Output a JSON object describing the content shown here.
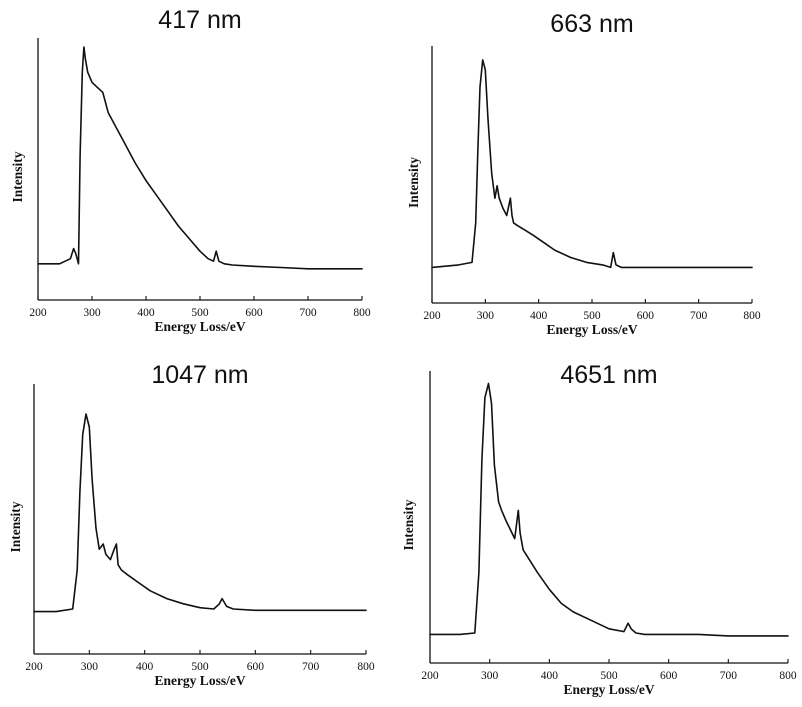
{
  "chart_data": [
    {
      "type": "line",
      "title": "417 nm",
      "xlabel": "Energy Loss/eV",
      "ylabel": "Intensity",
      "xlim": [
        200,
        800
      ],
      "ylim": [
        0,
        1
      ],
      "xticks": [
        200,
        300,
        400,
        500,
        600,
        700,
        800
      ],
      "yticks": [],
      "grid": false,
      "legend": "none",
      "series": [
        {
          "x": [
            200,
            240,
            260,
            266,
            270,
            275,
            278,
            282,
            285,
            288,
            292,
            300,
            310,
            320,
            330,
            345,
            360,
            380,
            400,
            420,
            440,
            460,
            480,
            500,
            515,
            525,
            530,
            535,
            545,
            560,
            600,
            650,
            700,
            760,
            800
          ],
          "y": [
            0.12,
            0.12,
            0.14,
            0.18,
            0.16,
            0.12,
            0.55,
            0.88,
            0.98,
            0.93,
            0.88,
            0.84,
            0.82,
            0.8,
            0.72,
            0.66,
            0.6,
            0.52,
            0.45,
            0.39,
            0.33,
            0.27,
            0.22,
            0.17,
            0.14,
            0.13,
            0.17,
            0.13,
            0.12,
            0.115,
            0.11,
            0.105,
            0.1,
            0.1,
            0.1
          ]
        }
      ]
    },
    {
      "type": "line",
      "title": "663 nm",
      "xlabel": "Energy Loss/eV",
      "ylabel": "Intensity",
      "xlim": [
        200,
        800
      ],
      "ylim": [
        0,
        1
      ],
      "xticks": [
        200,
        300,
        400,
        500,
        600,
        700,
        800
      ],
      "yticks": [],
      "grid": false,
      "legend": "none",
      "series": [
        {
          "x": [
            200,
            250,
            275,
            282,
            286,
            290,
            295,
            300,
            305,
            312,
            318,
            322,
            326,
            333,
            340,
            347,
            350,
            353,
            360,
            375,
            390,
            410,
            430,
            460,
            490,
            520,
            535,
            540,
            545,
            555,
            600,
            650,
            700,
            750,
            800
          ],
          "y": [
            0.12,
            0.13,
            0.14,
            0.3,
            0.6,
            0.85,
            0.96,
            0.92,
            0.72,
            0.5,
            0.4,
            0.45,
            0.4,
            0.36,
            0.33,
            0.4,
            0.33,
            0.3,
            0.29,
            0.27,
            0.25,
            0.22,
            0.19,
            0.16,
            0.14,
            0.13,
            0.12,
            0.18,
            0.13,
            0.12,
            0.12,
            0.12,
            0.12,
            0.12,
            0.12
          ]
        }
      ]
    },
    {
      "type": "line",
      "title": "1047 nm",
      "xlabel": "Energy Loss/eV",
      "ylabel": "Intensity",
      "xlim": [
        200,
        800
      ],
      "ylim": [
        0,
        1
      ],
      "xticks": [
        200,
        300,
        400,
        500,
        600,
        700,
        800
      ],
      "yticks": [],
      "grid": false,
      "legend": "none",
      "series": [
        {
          "x": [
            200,
            240,
            270,
            278,
            283,
            288,
            294,
            300,
            305,
            312,
            318,
            325,
            330,
            338,
            345,
            349,
            352,
            358,
            370,
            390,
            410,
            440,
            470,
            500,
            525,
            535,
            540,
            548,
            560,
            600,
            650,
            700,
            760,
            800
          ],
          "y": [
            0.14,
            0.14,
            0.15,
            0.3,
            0.6,
            0.82,
            0.9,
            0.85,
            0.65,
            0.46,
            0.38,
            0.4,
            0.36,
            0.34,
            0.38,
            0.4,
            0.32,
            0.3,
            0.28,
            0.25,
            0.22,
            0.19,
            0.17,
            0.155,
            0.15,
            0.17,
            0.19,
            0.16,
            0.15,
            0.145,
            0.145,
            0.145,
            0.145,
            0.145
          ]
        }
      ]
    },
    {
      "type": "line",
      "title": "4651 nm",
      "xlabel": "Energy Loss/eV",
      "ylabel": "Intensity",
      "xlim": [
        200,
        800
      ],
      "ylim": [
        0,
        1
      ],
      "xticks": [
        200,
        300,
        400,
        500,
        600,
        700,
        800
      ],
      "yticks": [],
      "grid": false,
      "legend": "none",
      "series": [
        {
          "x": [
            200,
            250,
            275,
            282,
            287,
            292,
            298,
            303,
            308,
            315,
            320,
            328,
            335,
            342,
            348,
            351,
            356,
            365,
            380,
            400,
            420,
            440,
            470,
            500,
            525,
            532,
            537,
            545,
            560,
            600,
            650,
            700,
            760,
            800
          ],
          "y": [
            0.08,
            0.08,
            0.085,
            0.3,
            0.7,
            0.92,
            0.97,
            0.9,
            0.68,
            0.55,
            0.52,
            0.48,
            0.45,
            0.42,
            0.52,
            0.44,
            0.38,
            0.35,
            0.3,
            0.24,
            0.19,
            0.16,
            0.13,
            0.1,
            0.09,
            0.12,
            0.1,
            0.085,
            0.08,
            0.08,
            0.08,
            0.075,
            0.075,
            0.075
          ]
        }
      ]
    }
  ]
}
